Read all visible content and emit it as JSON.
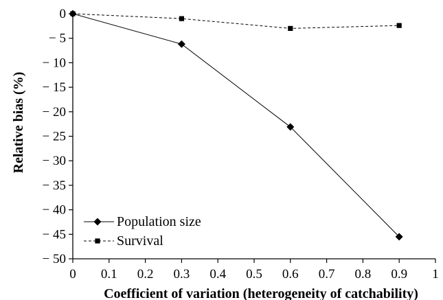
{
  "chart_data": {
    "type": "line",
    "title": "",
    "xlabel": "Coefficient of variation (heterogeneity of catchability)",
    "ylabel": "Relative bias (%)",
    "xlim": [
      0,
      1
    ],
    "ylim": [
      -50,
      0
    ],
    "xticks": [
      0,
      0.1,
      0.2,
      0.3,
      0.4,
      0.5,
      0.6,
      0.7,
      0.8,
      0.9,
      1
    ],
    "xtick_labels": [
      "0",
      "0.1",
      "0.2",
      "0.3",
      "0.4",
      "0.5",
      "0.6",
      "0.7",
      "0.8",
      "0.9",
      "1"
    ],
    "yticks": [
      0,
      -5,
      -10,
      -15,
      -20,
      -25,
      -30,
      -35,
      -40,
      -45,
      -50
    ],
    "ytick_labels": [
      "0",
      "− 5",
      "− 10",
      "− 15",
      "− 20",
      "− 25",
      "− 30",
      "− 35",
      "− 40",
      "− 45",
      "− 50"
    ],
    "grid": false,
    "legend_position": "bottom-left",
    "series": [
      {
        "name": "Population size",
        "marker": "diamond",
        "line_style": "solid",
        "color": "#000000",
        "x": [
          0,
          0.3,
          0.6,
          0.9
        ],
        "y": [
          0,
          -6.2,
          -23.1,
          -45.5
        ]
      },
      {
        "name": "Survival",
        "marker": "square",
        "line_style": "dashed",
        "color": "#000000",
        "x": [
          0,
          0.3,
          0.6,
          0.9
        ],
        "y": [
          0,
          -1.0,
          -3.0,
          -2.4
        ]
      }
    ]
  }
}
